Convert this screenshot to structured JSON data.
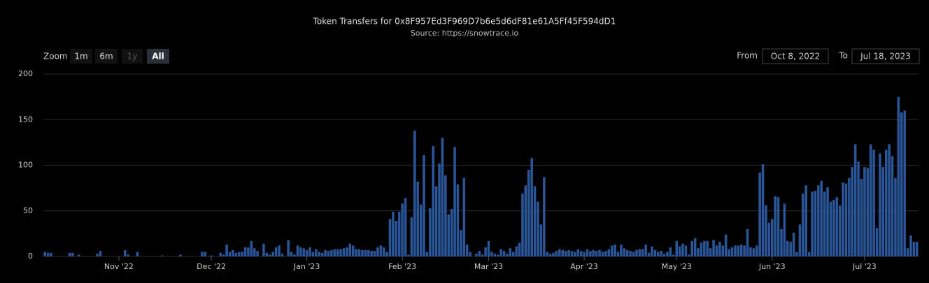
{
  "chart_data": {
    "type": "bar",
    "title": "Token Transfers for 0x8F957Ed3F969D7b6e5d6dF81e61A5Ff45F594dD1",
    "subtitle": "Source: https://snowtrace.io",
    "zoom": {
      "label": "Zoom",
      "buttons": [
        "1m",
        "6m",
        "1y",
        "All"
      ]
    },
    "range": {
      "from_label": "From",
      "from": "Oct 8, 2022",
      "to_label": "To",
      "to": "Jul 18, 2023"
    },
    "color": "#2a5699",
    "ylim": [
      0,
      200
    ],
    "yticks": [
      0,
      50,
      100,
      150,
      200
    ],
    "grid": true,
    "categories": [
      null,
      null,
      null,
      null,
      null,
      null,
      null,
      null,
      null,
      null,
      null,
      null,
      null,
      null,
      null,
      null,
      null,
      null,
      null,
      null,
      null,
      null,
      null,
      null,
      "Nov '22",
      null,
      null,
      null,
      null,
      null,
      null,
      null,
      null,
      null,
      null,
      null,
      null,
      null,
      null,
      null,
      null,
      null,
      null,
      null,
      null,
      null,
      null,
      null,
      null,
      null,
      null,
      null,
      null,
      null,
      "Dec '22",
      null,
      null,
      null,
      null,
      null,
      null,
      null,
      null,
      null,
      null,
      null,
      null,
      null,
      null,
      null,
      null,
      null,
      null,
      null,
      null,
      null,
      null,
      null,
      null,
      null,
      null,
      null,
      null,
      null,
      null,
      "Jan '23",
      null,
      null,
      null,
      null,
      null,
      null,
      null,
      null,
      null,
      null,
      null,
      null,
      null,
      null,
      null,
      null,
      null,
      null,
      null,
      null,
      null,
      null,
      null,
      null,
      null,
      null,
      null,
      null,
      null,
      null,
      "Feb '23",
      null,
      null,
      null,
      null,
      null,
      null,
      null,
      null,
      null,
      null,
      null,
      null,
      null,
      null,
      null,
      null,
      null,
      null,
      null,
      null,
      null,
      null,
      null,
      null,
      null,
      null,
      null,
      "Mar '23",
      null,
      null,
      null,
      null,
      null,
      null,
      null,
      null,
      null,
      null,
      null,
      null,
      null,
      null,
      null,
      null,
      null,
      null,
      null,
      null,
      null,
      null,
      null,
      null,
      null,
      null,
      null,
      null,
      null,
      null,
      "Apr '23",
      null,
      null,
      null,
      null,
      null,
      null,
      null,
      null,
      null,
      null,
      null,
      null,
      null,
      null,
      null,
      null,
      null,
      null,
      null,
      null,
      null,
      null,
      null,
      null,
      null,
      null,
      null,
      null,
      null,
      "May '23",
      null,
      null,
      null,
      null,
      null,
      null,
      null,
      null,
      null,
      null,
      null,
      null,
      null,
      null,
      null,
      null,
      null,
      null,
      null,
      null,
      null,
      null,
      null,
      null,
      null,
      null,
      null,
      null,
      null,
      null,
      "Jun '23",
      null,
      null,
      null,
      null,
      null,
      null,
      null,
      null,
      null,
      null,
      null,
      null,
      null,
      null,
      null,
      null,
      null,
      null,
      null,
      null,
      null,
      null,
      null,
      null,
      null,
      null,
      null,
      null,
      null,
      "Jul '23",
      null,
      null,
      null,
      null,
      null,
      null,
      null,
      null,
      null,
      null,
      null,
      null,
      null,
      null,
      null,
      null,
      null
    ],
    "values": [
      5,
      4,
      4,
      0,
      0,
      0,
      0,
      0,
      4,
      4,
      0,
      2,
      0,
      0,
      0,
      0,
      0,
      3,
      6,
      0,
      0,
      0,
      0,
      0,
      0,
      0,
      7,
      2,
      0,
      0,
      5,
      0,
      0,
      0,
      0,
      0,
      0,
      0,
      1,
      0,
      0,
      0,
      0,
      0,
      2,
      0,
      0,
      0,
      0,
      0,
      0,
      5,
      5,
      0,
      1,
      0,
      0,
      4,
      2,
      13,
      5,
      7,
      4,
      5,
      5,
      10,
      10,
      17,
      9,
      6,
      0,
      14,
      4,
      2,
      5,
      10,
      12,
      3,
      0,
      18,
      5,
      2,
      12,
      10,
      9,
      7,
      10,
      5,
      8,
      5,
      4,
      7,
      6,
      7,
      8,
      8,
      8,
      9,
      10,
      14,
      12,
      8,
      8,
      7,
      7,
      7,
      6,
      6,
      10,
      12,
      10,
      5,
      41,
      49,
      39,
      49,
      58,
      64,
      2,
      43,
      138,
      82,
      57,
      111,
      5,
      53,
      121,
      77,
      102,
      130,
      89,
      46,
      52,
      120,
      79,
      29,
      86,
      13,
      5,
      0,
      3,
      6,
      2,
      10,
      17,
      5,
      3,
      2,
      8,
      6,
      3,
      9,
      5,
      11,
      15,
      69,
      78,
      95,
      108,
      77,
      60,
      35,
      87,
      5,
      3,
      4,
      6,
      8,
      7,
      6,
      7,
      6,
      5,
      8,
      6,
      5,
      8,
      6,
      7,
      6,
      7,
      5,
      6,
      8,
      12,
      13,
      5,
      13,
      9,
      7,
      6,
      5,
      7,
      8,
      8,
      13,
      4,
      11,
      7,
      5,
      6,
      3,
      5,
      10,
      2,
      17,
      11,
      14,
      12,
      2,
      17,
      20,
      9,
      15,
      17,
      17,
      9,
      18,
      12,
      16,
      12,
      24,
      8,
      10,
      12,
      12,
      13,
      12,
      30,
      10,
      9,
      12,
      92,
      101,
      56,
      37,
      41,
      66,
      65,
      30,
      58,
      17,
      16,
      26,
      5,
      35,
      69,
      78,
      5,
      71,
      72,
      78,
      83,
      71,
      76,
      60,
      62,
      65,
      56,
      81,
      80,
      86,
      98,
      123,
      104,
      85,
      98,
      97,
      123,
      117,
      31,
      113,
      98,
      117,
      123,
      110,
      86,
      175,
      158,
      160,
      9,
      23,
      16,
      16
    ]
  }
}
